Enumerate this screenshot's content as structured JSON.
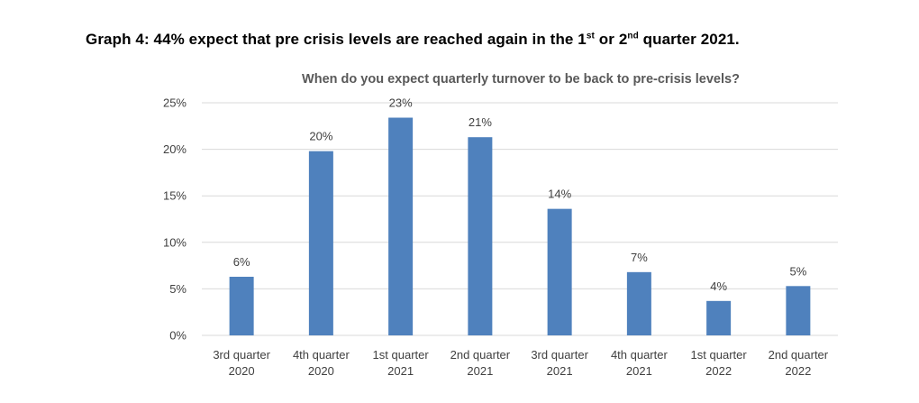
{
  "caption": {
    "part1": "Graph 4: 44% expect that pre crisis levels are reached again in the 1",
    "sup1": "st",
    "part2": " or 2",
    "sup2": "nd",
    "part3": " quarter 2021."
  },
  "chart_data": {
    "type": "bar",
    "title": "When do you expect quarterly turnover to be back to pre-crisis levels?",
    "xlabel": "",
    "ylabel": "",
    "categories": [
      [
        "3rd quarter",
        "2020"
      ],
      [
        "4th quarter",
        "2020"
      ],
      [
        "1st quarter",
        "2021"
      ],
      [
        "2nd quarter",
        "2021"
      ],
      [
        "3rd quarter",
        "2021"
      ],
      [
        "4th quarter",
        "2021"
      ],
      [
        "1st quarter",
        "2022"
      ],
      [
        "2nd quarter",
        "2022"
      ]
    ],
    "values": [
      6.3,
      19.8,
      23.4,
      21.3,
      13.6,
      6.8,
      3.7,
      5.3
    ],
    "data_labels": [
      "6%",
      "20%",
      "23%",
      "21%",
      "14%",
      "7%",
      "4%",
      "5%"
    ],
    "ylim": [
      0,
      25
    ],
    "yticks": [
      0,
      5,
      10,
      15,
      20,
      25
    ],
    "ytick_labels": [
      "0%",
      "5%",
      "10%",
      "15%",
      "20%",
      "25%"
    ],
    "grid": true,
    "legend": "none",
    "bar_color": "#4F81BD",
    "grid_color": "#D9D9D9"
  }
}
